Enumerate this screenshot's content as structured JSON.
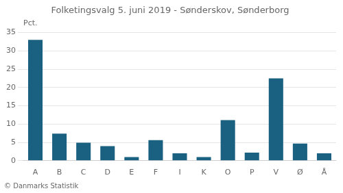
{
  "chart_data": {
    "type": "bar",
    "title": "Folketingsvalg 5. juni 2019 - Sønderskov, Sønderborg",
    "ylabel": "Pct.",
    "footer": "© Danmarks Statistik",
    "categories": [
      "A",
      "B",
      "C",
      "D",
      "E",
      "F",
      "I",
      "K",
      "O",
      "P",
      "V",
      "Ø",
      "Å"
    ],
    "values": [
      33.0,
      7.4,
      4.9,
      4.0,
      1.0,
      5.6,
      2.0,
      1.0,
      11.1,
      2.2,
      22.5,
      4.7,
      2.0
    ],
    "color": "#1a6080",
    "ylim": [
      0,
      35
    ],
    "yticks": [
      0,
      5,
      10,
      15,
      20,
      25,
      30,
      35
    ],
    "grid": true
  }
}
